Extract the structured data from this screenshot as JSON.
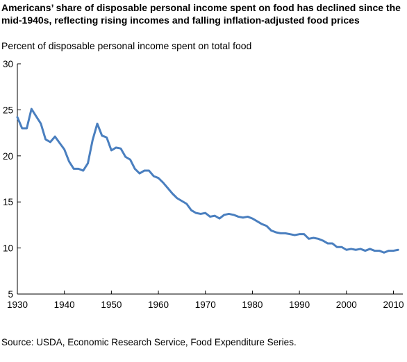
{
  "title": "Americans’ share of disposable personal income spent on food has declined since the mid-1940s, reflecting rising incomes and falling inflation-adjusted food prices",
  "source": "Source: USDA, Economic Research Service, Food Expenditure Series.",
  "chart_data": {
    "type": "line",
    "title": "Americans’ share of disposable personal income spent on food has declined since the mid-1940s, reflecting rising incomes and falling inflation-adjusted food prices",
    "ylabel": "Percent of disposable personal income spent on total food",
    "xlabel": "",
    "xlim": [
      1930,
      2012
    ],
    "ylim": [
      5,
      30
    ],
    "xticks": [
      1930,
      1940,
      1950,
      1960,
      1970,
      1980,
      1990,
      2000,
      2010
    ],
    "yticks": [
      5,
      10,
      15,
      20,
      25,
      30
    ],
    "grid": false,
    "line_color": "#4a7fbf",
    "series": [
      {
        "x": [
          1930,
          1931,
          1932,
          1933,
          1934,
          1935,
          1936,
          1937,
          1938,
          1939,
          1940,
          1941,
          1942,
          1943,
          1944,
          1945,
          1946,
          1947,
          1948,
          1949,
          1950,
          1951,
          1952,
          1953,
          1954,
          1955,
          1956,
          1957,
          1958,
          1959,
          1960,
          1961,
          1962,
          1963,
          1964,
          1965,
          1966,
          1967,
          1968,
          1969,
          1970,
          1971,
          1972,
          1973,
          1974,
          1975,
          1976,
          1977,
          1978,
          1979,
          1980,
          1981,
          1982,
          1983,
          1984,
          1985,
          1986,
          1987,
          1988,
          1989,
          1990,
          1991,
          1992,
          1993,
          1994,
          1995,
          1996,
          1997,
          1998,
          1999,
          2000,
          2001,
          2002,
          2003,
          2004,
          2005,
          2006,
          2007,
          2008,
          2009,
          2010,
          2011
        ],
        "values": [
          24.2,
          23.0,
          23.0,
          25.1,
          24.3,
          23.5,
          21.8,
          21.5,
          22.1,
          21.4,
          20.7,
          19.4,
          18.6,
          18.6,
          18.4,
          19.2,
          21.7,
          23.5,
          22.2,
          22.0,
          20.6,
          20.9,
          20.8,
          19.9,
          19.6,
          18.6,
          18.1,
          18.4,
          18.4,
          17.8,
          17.6,
          17.1,
          16.5,
          15.9,
          15.4,
          15.1,
          14.8,
          14.1,
          13.8,
          13.7,
          13.8,
          13.4,
          13.5,
          13.2,
          13.6,
          13.7,
          13.6,
          13.4,
          13.3,
          13.4,
          13.2,
          12.9,
          12.6,
          12.4,
          11.9,
          11.7,
          11.6,
          11.6,
          11.5,
          11.4,
          11.5,
          11.5,
          11.0,
          11.1,
          11.0,
          10.8,
          10.5,
          10.5,
          10.1,
          10.1,
          9.8,
          9.9,
          9.8,
          9.9,
          9.7,
          9.9,
          9.7,
          9.7,
          9.5,
          9.7,
          9.7,
          9.8
        ]
      }
    ]
  }
}
